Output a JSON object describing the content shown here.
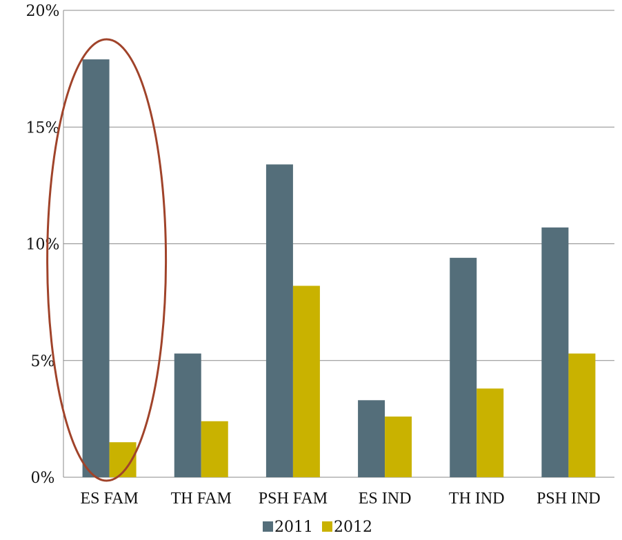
{
  "chart_data": {
    "type": "bar",
    "categories": [
      "ES FAM",
      "TH FAM",
      "PSH FAM",
      "ES IND",
      "TH IND",
      "PSH IND"
    ],
    "series": [
      {
        "name": "2011",
        "color": "#546e7a",
        "values": [
          17.9,
          5.3,
          13.4,
          3.3,
          9.4,
          10.7
        ]
      },
      {
        "name": "2012",
        "color": "#c9b200",
        "values": [
          1.5,
          2.4,
          8.2,
          2.6,
          3.8,
          5.3
        ]
      }
    ],
    "title": "",
    "xlabel": "",
    "ylabel": "",
    "ylim": [
      0,
      20
    ],
    "yticks": [
      "0%",
      "5%",
      "10%",
      "15%",
      "20%"
    ],
    "grid": true,
    "legend": "bottom",
    "annotations": [
      {
        "kind": "ellipse-highlight",
        "target_category": "ES FAM",
        "color": "#a0432a"
      }
    ]
  }
}
